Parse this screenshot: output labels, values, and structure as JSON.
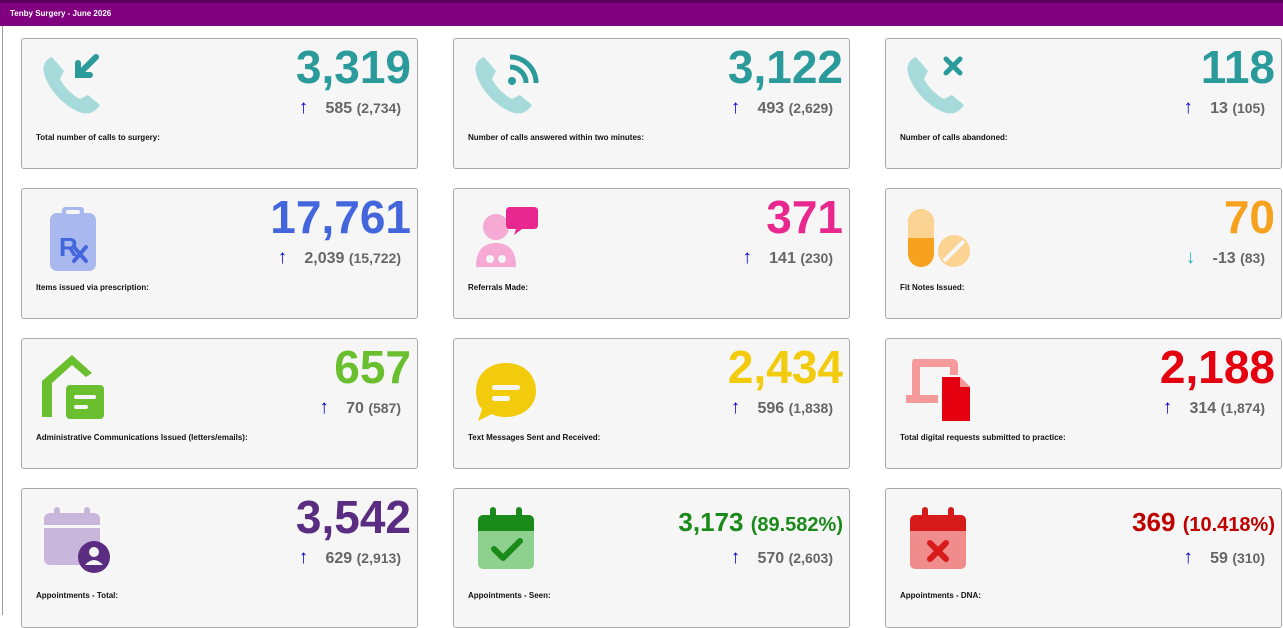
{
  "header": {
    "title": "Tenby Surgery - June 2026"
  },
  "cards": [
    {
      "label": "Total number of calls to surgery:",
      "value": "3,319",
      "delta": "585",
      "previous": "(2,734)",
      "trend": "up",
      "icon": "phone-incoming-icon",
      "color": "#2a9a9a"
    },
    {
      "label": "Number of calls answered within two minutes:",
      "value": "3,122",
      "delta": "493",
      "previous": "(2,629)",
      "trend": "up",
      "icon": "phone-answered-icon",
      "color": "#2a9a9a"
    },
    {
      "label": "Number of calls abandoned:",
      "value": "118",
      "delta": "13",
      "previous": "(105)",
      "trend": "up",
      "icon": "phone-missed-icon",
      "color": "#2a9a9a"
    },
    {
      "label": "Items issued via prescription:",
      "value": "17,761",
      "delta": "2,039",
      "previous": "(15,722)",
      "trend": "up",
      "icon": "prescription-icon",
      "color": "#4466dd"
    },
    {
      "label": "Referrals Made:",
      "value": "371",
      "delta": "141",
      "previous": "(230)",
      "trend": "up",
      "icon": "referral-people-icon",
      "color": "#e8288e"
    },
    {
      "label": "Fit Notes Issued:",
      "value": "70",
      "delta": "-13",
      "previous": "(83)",
      "trend": "down",
      "icon": "pills-icon",
      "color": "#f6a21e"
    },
    {
      "label": "Administrative Communications Issued (letters/emails):",
      "value": "657",
      "delta": "70",
      "previous": "(587)",
      "trend": "up",
      "icon": "house-letter-icon",
      "color": "#6abf2f"
    },
    {
      "label": "Text Messages Sent and Received:",
      "value": "2,434",
      "delta": "596",
      "previous": "(1,838)",
      "trend": "up",
      "icon": "message-bubble-icon",
      "color": "#f2cc0c"
    },
    {
      "label": "Total digital requests submitted to practice:",
      "value": "2,188",
      "delta": "314",
      "previous": "(1,874)",
      "trend": "up",
      "icon": "digital-request-icon",
      "color": "#e4000f"
    },
    {
      "label": "Appointments - Total:",
      "value": "3,542",
      "pct": "",
      "delta": "629",
      "previous": "(2,913)",
      "trend": "up",
      "icon": "calendar-user-icon",
      "color": "#5b2d82"
    },
    {
      "label": "Appointments - Seen:",
      "value": "3,173",
      "pct": "(89.582%)",
      "delta": "570",
      "previous": "(2,603)",
      "trend": "up",
      "icon": "calendar-check-icon",
      "color": "#1a8a1a"
    },
    {
      "label": "Appointments - DNA:",
      "value": "369",
      "pct": "(10.418%)",
      "delta": "59",
      "previous": "(310)",
      "trend": "up",
      "icon": "calendar-x-icon",
      "color": "#c00000"
    }
  ],
  "trend_colors": {
    "up": "#0000cc",
    "down": "#1fb8d6"
  },
  "trend_arrows": {
    "up": "↑",
    "down": "↓"
  }
}
